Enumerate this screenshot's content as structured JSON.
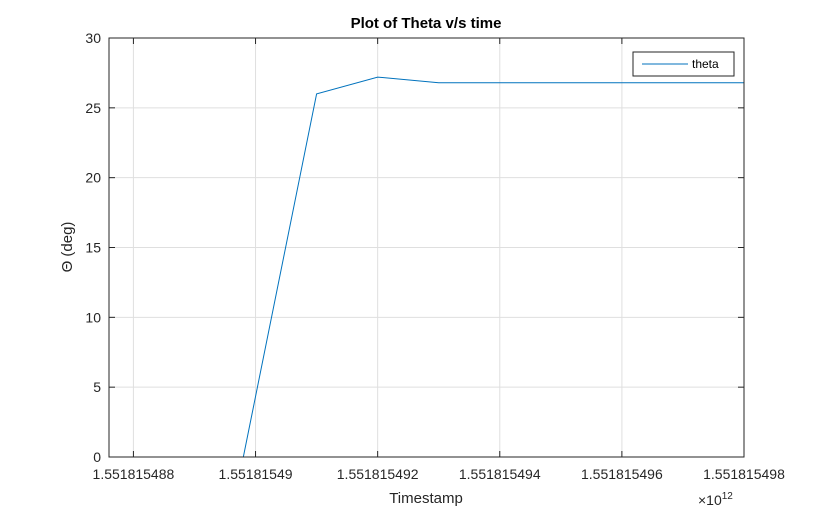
{
  "chart_data": {
    "type": "line",
    "title": "Plot of Theta v/s time",
    "xlabel": "Timestamp",
    "ylabel": "Θ (deg)",
    "x_exponent_label": "×10",
    "x_exponent_power": "12",
    "xlim": [
      1.5518154876,
      1.551815498
    ],
    "ylim": [
      0,
      30
    ],
    "x_ticks": [
      1.551815488,
      1.55181549,
      1.551815492,
      1.551815494,
      1.551815496,
      1.551815498
    ],
    "x_tick_labels": [
      "1.551815488",
      "1.55181549",
      "1.551815492",
      "1.551815494",
      "1.551815496",
      "1.551815498"
    ],
    "y_ticks": [
      0,
      5,
      10,
      15,
      20,
      25,
      30
    ],
    "y_tick_labels": [
      "0",
      "5",
      "10",
      "15",
      "20",
      "25",
      "30"
    ],
    "grid": true,
    "legend_position": "top-right",
    "series": [
      {
        "name": "theta",
        "color": "#0072BD",
        "x": [
          1.551815488,
          1.5518154898,
          1.551815491,
          1.551815492,
          1.551815493,
          1.551815498
        ],
        "y": [
          0,
          0,
          26.0,
          27.2,
          26.8,
          26.8
        ]
      }
    ]
  }
}
